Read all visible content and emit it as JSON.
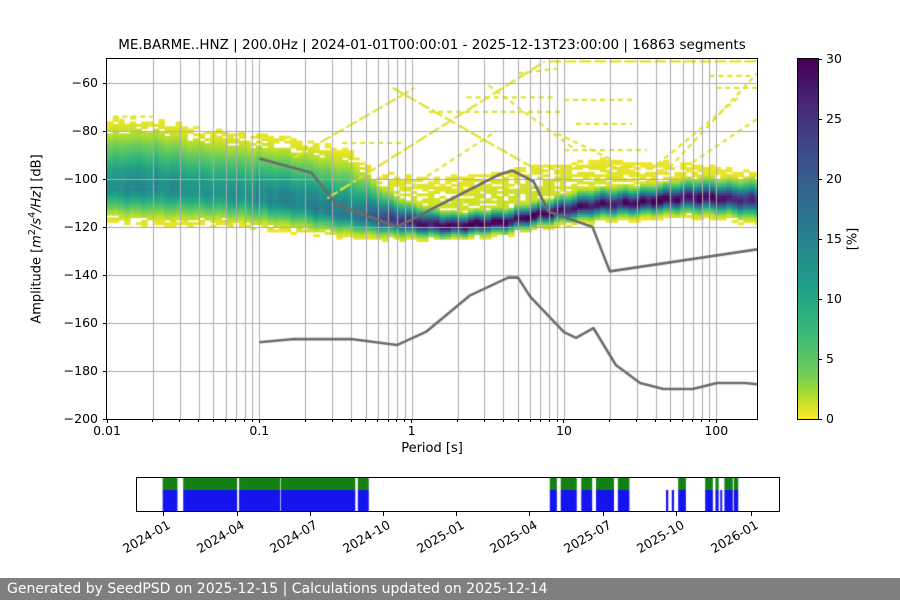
{
  "title": "ME.BARME..HNZ | 200.0Hz | 2024-01-01T00:00:01 - 2025-12-13T23:00:00 | 16863 segments",
  "footer": {
    "text": "Generated by SeedPSD on 2025-12-15 | Calculations updated on 2025-12-14",
    "bg": "#7f7f7f",
    "fg": "#ffffff"
  },
  "colors": {
    "grid": "#ababab",
    "noise_model": "#6b6b6b",
    "coverage_green": "#128012",
    "coverage_blue": "#1414ee",
    "viridis_stops": [
      [
        0.0,
        68,
        1,
        84
      ],
      [
        0.125,
        72,
        40,
        120
      ],
      [
        0.25,
        62,
        74,
        137
      ],
      [
        0.375,
        49,
        104,
        142
      ],
      [
        0.5,
        38,
        130,
        142
      ],
      [
        0.625,
        31,
        158,
        137
      ],
      [
        0.75,
        53,
        183,
        121
      ],
      [
        0.875,
        109,
        205,
        89
      ],
      [
        0.94,
        180,
        222,
        44
      ],
      [
        1.0,
        253,
        231,
        37
      ]
    ]
  },
  "axes": {
    "xlabel": "Period [s]",
    "ylabel_segments": [
      {
        "t": "Amplitude [",
        "s": "plain"
      },
      {
        "t": "m",
        "s": "italic"
      },
      {
        "t": "2",
        "s": "sup"
      },
      {
        "t": "/",
        "s": "italic"
      },
      {
        "t": "s",
        "s": "italic"
      },
      {
        "t": "4",
        "s": "sup"
      },
      {
        "t": "/",
        "s": "italic"
      },
      {
        "t": "Hz",
        "s": "italic"
      },
      {
        "t": "] [dB]",
        "s": "plain"
      }
    ],
    "xticks": [
      {
        "v": 0.01,
        "label": "0.01"
      },
      {
        "v": 0.1,
        "label": "0.1"
      },
      {
        "v": 1,
        "label": "1"
      },
      {
        "v": 10,
        "label": "10"
      },
      {
        "v": 100,
        "label": "100"
      }
    ],
    "yticks": [
      {
        "v": -200,
        "label": "−200"
      },
      {
        "v": -180,
        "label": "−180"
      },
      {
        "v": -160,
        "label": "−160"
      },
      {
        "v": -140,
        "label": "−140"
      },
      {
        "v": -120,
        "label": "−120"
      },
      {
        "v": -100,
        "label": "−100"
      },
      {
        "v": -80,
        "label": "−80"
      },
      {
        "v": -60,
        "label": "−60"
      }
    ]
  },
  "colorbar": {
    "label": "[%]",
    "vmin": 0,
    "vmax": 30,
    "ticks": [
      {
        "v": 0,
        "label": "0"
      },
      {
        "v": 5,
        "label": "5"
      },
      {
        "v": 10,
        "label": "10"
      },
      {
        "v": 15,
        "label": "15"
      },
      {
        "v": 20,
        "label": "20"
      },
      {
        "v": 25,
        "label": "25"
      },
      {
        "v": 30,
        "label": "30"
      }
    ]
  },
  "chart_data": [
    {
      "type": "heatmap",
      "title": "PPSD probability density",
      "xlabel": "Period [s]",
      "ylabel": "Amplitude [m2/s4/Hz] [dB]",
      "xscale": "log",
      "xlim": [
        0.01,
        185
      ],
      "ylim": [
        -200,
        -50
      ],
      "grid": true,
      "colorbar_label": "[%]",
      "colorbar_range": [
        0,
        30
      ],
      "cmap": "viridis_r",
      "psd_model": {
        "comment": "mode curve of the probability histogram: center dB, peak %, upper/lower sigma (dB), faint halo peak %",
        "periods": [
          0.01,
          0.02,
          0.04,
          0.07,
          0.1,
          0.2,
          0.4,
          0.7,
          1.0,
          2.0,
          4.0,
          7.0,
          10,
          15,
          20,
          40,
          80,
          120,
          185
        ],
        "mode_db": [
          -104,
          -103,
          -105.5,
          -106.5,
          -107.5,
          -111,
          -115,
          -117.5,
          -118.5,
          -119.5,
          -118.5,
          -114.5,
          -113,
          -111.5,
          -110.5,
          -109,
          -108,
          -108,
          -109
        ],
        "peak_pct": [
          13,
          14,
          13,
          13,
          14,
          15,
          16,
          24,
          27,
          30,
          30,
          30,
          29,
          28,
          28,
          30,
          30,
          28,
          25
        ],
        "sigma_up": [
          11,
          11,
          10,
          10,
          10,
          10,
          10,
          5,
          3.5,
          2.5,
          2.5,
          2.5,
          2.8,
          3,
          3,
          3,
          3.5,
          3.5,
          4
        ],
        "sigma_dn": [
          5.5,
          6,
          5.5,
          5,
          5,
          4.5,
          3.5,
          3,
          2.5,
          2,
          2,
          2,
          2.2,
          2.5,
          2.5,
          2.5,
          3,
          3,
          3.5
        ],
        "halo_pct": [
          0,
          0,
          0,
          0,
          0,
          0.2,
          0.5,
          0.9,
          1.0,
          1.1,
          1.2,
          1.2,
          1.0,
          0.9,
          0.8,
          0.6,
          0.5,
          0.45,
          0.45
        ],
        "halo_sigma": 9,
        "halo_offset": 8,
        "draw_threshold_pct": 0.4
      },
      "streaks": [
        [
          0.011,
          -74,
          0.02,
          -74,
          1
        ],
        [
          0.28,
          -108,
          7.5,
          -51,
          0
        ],
        [
          0.17,
          -91,
          1.05,
          -62,
          0
        ],
        [
          0.75,
          -62,
          7,
          -97,
          0
        ],
        [
          3.2,
          -61,
          12,
          -88,
          1
        ],
        [
          1.3,
          -72,
          10,
          -72,
          1
        ],
        [
          2.3,
          -66,
          8.5,
          -66,
          1
        ],
        [
          8,
          -51,
          185,
          -51,
          0
        ],
        [
          45,
          -98,
          185,
          -56,
          1
        ],
        [
          30,
          -101,
          140,
          -66,
          1
        ],
        [
          70,
          -93,
          185,
          -75,
          1
        ],
        [
          90,
          -57,
          170,
          -57,
          1
        ],
        [
          5,
          -56,
          9,
          -54,
          1
        ],
        [
          10,
          -67,
          28,
          -67,
          1
        ],
        [
          12,
          -77,
          28,
          -77,
          1
        ],
        [
          9,
          -81,
          24,
          -94,
          1
        ],
        [
          10,
          -88,
          35,
          -88,
          1
        ],
        [
          9,
          -95,
          28,
          -95,
          1
        ],
        [
          14,
          -100,
          40,
          -100,
          1
        ],
        [
          100,
          -62,
          185,
          -62,
          1
        ],
        [
          0.35,
          -85,
          0.9,
          -85,
          1
        ],
        [
          0.9,
          -105,
          3.6,
          -80,
          1
        ]
      ],
      "noise_models": {
        "nhnm": [
          [
            0.1,
            -91.5
          ],
          [
            0.22,
            -97.4
          ],
          [
            0.32,
            -110.5
          ],
          [
            0.8,
            -120.0
          ],
          [
            3.8,
            -98.0
          ],
          [
            4.6,
            -96.5
          ],
          [
            6.3,
            -101.0
          ],
          [
            7.9,
            -113.5
          ],
          [
            15.4,
            -120.0
          ],
          [
            20.0,
            -138.5
          ],
          [
            185,
            -129.3
          ]
        ],
        "nlnm": [
          [
            0.1,
            -168.0
          ],
          [
            0.17,
            -166.7
          ],
          [
            0.4,
            -166.7
          ],
          [
            0.8,
            -169.2
          ],
          [
            1.24,
            -163.7
          ],
          [
            2.4,
            -148.6
          ],
          [
            4.3,
            -141.1
          ],
          [
            5.0,
            -141.1
          ],
          [
            6.0,
            -149.0
          ],
          [
            10.0,
            -163.8
          ],
          [
            12.0,
            -166.2
          ],
          [
            15.6,
            -162.1
          ],
          [
            21.9,
            -177.5
          ],
          [
            31.6,
            -185.0
          ],
          [
            45.0,
            -187.5
          ],
          [
            70.0,
            -187.5
          ],
          [
            101.0,
            -185.0
          ],
          [
            154.0,
            -185.0
          ],
          [
            185,
            -185.5
          ]
        ]
      }
    },
    {
      "type": "coverage-timeline",
      "ticks": [
        {
          "label": "2024-01",
          "pct": 4.05
        },
        {
          "label": "2024-04",
          "pct": 15.58
        },
        {
          "label": "2024-07",
          "pct": 26.95
        },
        {
          "label": "2024-10",
          "pct": 38.32
        },
        {
          "label": "2025-01",
          "pct": 49.84
        },
        {
          "label": "2025-04",
          "pct": 61.21
        },
        {
          "label": "2025-07",
          "pct": 72.74
        },
        {
          "label": "2025-10",
          "pct": 84.11
        },
        {
          "label": "2026-01",
          "pct": 95.64
        }
      ],
      "segments": [
        [
          4.0,
          2.3,
          "full"
        ],
        [
          7.2,
          8.4,
          "full"
        ],
        [
          15.9,
          6.4,
          "full"
        ],
        [
          22.4,
          11.6,
          "full"
        ],
        [
          34.4,
          1.7,
          "full"
        ],
        [
          64.3,
          1.1,
          "full"
        ],
        [
          66.0,
          2.5,
          "full"
        ],
        [
          69.2,
          1.7,
          "full"
        ],
        [
          71.5,
          2.8,
          "full"
        ],
        [
          74.9,
          1.8,
          "full"
        ],
        [
          82.4,
          0.35,
          "blue"
        ],
        [
          83.3,
          0.35,
          "blue"
        ],
        [
          84.3,
          1.2,
          "full"
        ],
        [
          88.5,
          1.2,
          "full"
        ],
        [
          90.1,
          0.5,
          "full"
        ],
        [
          90.85,
          0.3,
          "blue"
        ],
        [
          91.5,
          1.3,
          "full"
        ],
        [
          92.95,
          0.7,
          "full"
        ]
      ],
      "green_fraction_of_height": 0.36
    }
  ]
}
